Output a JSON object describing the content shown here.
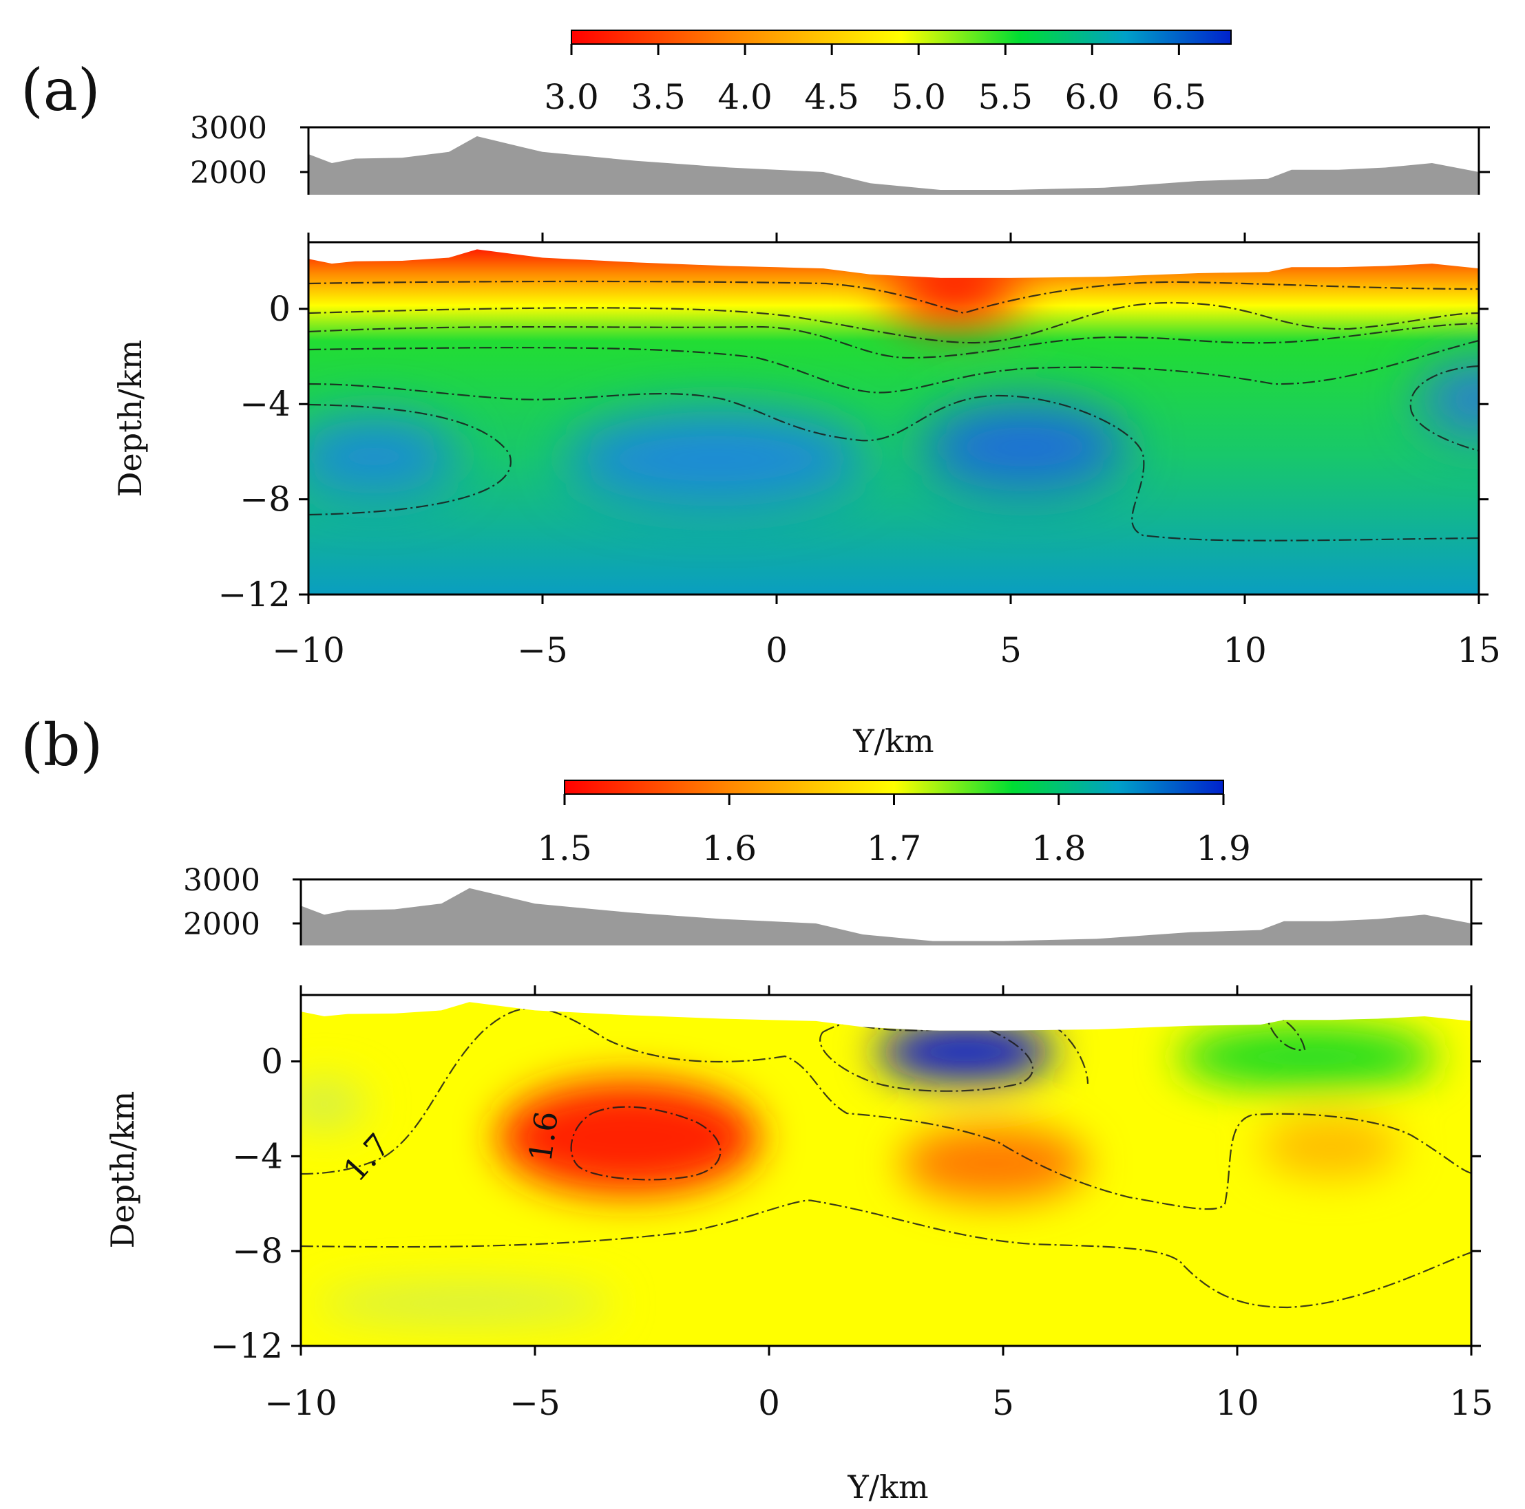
{
  "chart_data": [
    {
      "type": "heatmap",
      "panel_label": "(a)",
      "colorbar": {
        "ticks": [
          "3.0",
          "3.5",
          "4.0",
          "4.5",
          "5.0",
          "5.5",
          "6.0",
          "6.5"
        ],
        "range": [
          3.0,
          6.8
        ],
        "colors": [
          "#ff0000",
          "#ff8800",
          "#ffff00",
          "#00dd33",
          "#00a0c8",
          "#0022cc"
        ]
      },
      "topography": {
        "yticks": [
          "3000",
          "2000"
        ],
        "y": [
          -10,
          -9.5,
          -9,
          -8,
          -7,
          -6.4,
          -5,
          -3,
          -1,
          0,
          1,
          2,
          3.5,
          5,
          7,
          9,
          10.5,
          11,
          12,
          13,
          14,
          15
        ],
        "elevation": [
          2400,
          2200,
          2300,
          2320,
          2450,
          2800,
          2450,
          2250,
          2100,
          2050,
          2000,
          1750,
          1600,
          1600,
          1650,
          1800,
          1850,
          2050,
          2050,
          2100,
          2200,
          2000
        ]
      },
      "xlabel": "Y/km",
      "ylabel": "Depth/km",
      "xticks": [
        "−10",
        "−5",
        "0",
        "5",
        "10",
        "15"
      ],
      "yticks": [
        "0",
        "−4",
        "−8",
        "−12"
      ],
      "xlim": [
        -10,
        15
      ],
      "ylim": [
        -12,
        2.8
      ],
      "background": "#00b88a",
      "features": [
        {
          "kind": "low",
          "color": "#ff0000",
          "y": 3.8,
          "depth": 0.8,
          "ry": 1.4,
          "rz": 1.3
        },
        {
          "kind": "high",
          "color": "#1e6ed8",
          "y": 5.3,
          "depth": -5.8,
          "ry": 2.2,
          "rz": 1.9
        },
        {
          "kind": "high",
          "color": "#1e8ad8",
          "y": -1.3,
          "depth": -6.3,
          "ry": 3.2,
          "rz": 2.0
        },
        {
          "kind": "high",
          "color": "#1e8ad8",
          "y": -8.6,
          "depth": -6.2,
          "ry": 1.8,
          "rz": 1.6
        },
        {
          "kind": "high",
          "color": "#2a7ed0",
          "y": 15.0,
          "depth": -3.8,
          "ry": 1.3,
          "rz": 1.6
        }
      ]
    },
    {
      "type": "heatmap",
      "panel_label": "(b)",
      "colorbar": {
        "ticks": [
          "1.5",
          "1.6",
          "1.7",
          "1.8",
          "1.9"
        ],
        "range": [
          1.5,
          1.9
        ],
        "colors": [
          "#ff0000",
          "#ff8800",
          "#ffff00",
          "#00dd33",
          "#00a0c8",
          "#0022cc"
        ]
      },
      "topography": {
        "yticks": [
          "3000",
          "2000"
        ],
        "y": [
          -10,
          -9.5,
          -9,
          -8,
          -7,
          -6.4,
          -5,
          -3,
          -1,
          0,
          1,
          2,
          3.5,
          5,
          7,
          9,
          10.5,
          11,
          12,
          13,
          14,
          15
        ],
        "elevation": [
          2400,
          2200,
          2300,
          2320,
          2450,
          2800,
          2450,
          2250,
          2100,
          2050,
          2000,
          1750,
          1600,
          1600,
          1650,
          1800,
          1850,
          2050,
          2050,
          2100,
          2200,
          2000
        ]
      },
      "xlabel": "Y/km",
      "ylabel": "Depth/km",
      "xticks": [
        "−10",
        "−5",
        "0",
        "5",
        "10",
        "15"
      ],
      "yticks": [
        "0",
        "−4",
        "−8",
        "−12"
      ],
      "xlim": [
        -10,
        15
      ],
      "ylim": [
        -12,
        2.8
      ],
      "background": "#ffff00",
      "contour_labels": [
        "1.7",
        "1.6"
      ],
      "features": [
        {
          "kind": "low",
          "color": "#ff2200",
          "y": -3.0,
          "depth": -3.2,
          "ry": 2.8,
          "rz": 2.4
        },
        {
          "kind": "low",
          "color": "#ff7a00",
          "y": 4.8,
          "depth": -4.3,
          "ry": 2.0,
          "rz": 1.6
        },
        {
          "kind": "low",
          "color": "#ffbb00",
          "y": 12.0,
          "depth": -3.6,
          "ry": 1.5,
          "rz": 1.3
        },
        {
          "kind": "high",
          "color": "#0a1ecc",
          "y": 4.2,
          "depth": 0.4,
          "ry": 1.9,
          "rz": 1.3
        },
        {
          "kind": "mid",
          "color": "#22dd22",
          "y": 11.5,
          "depth": 0.2,
          "ry": 2.8,
          "rz": 1.4
        },
        {
          "kind": "mid",
          "color": "#d4f04a",
          "y": -9.5,
          "depth": -1.8,
          "ry": 0.9,
          "rz": 1.0
        },
        {
          "kind": "mid",
          "color": "#d4f04a",
          "y": -6.5,
          "depth": -10.2,
          "ry": 3.2,
          "rz": 0.8
        }
      ]
    }
  ]
}
